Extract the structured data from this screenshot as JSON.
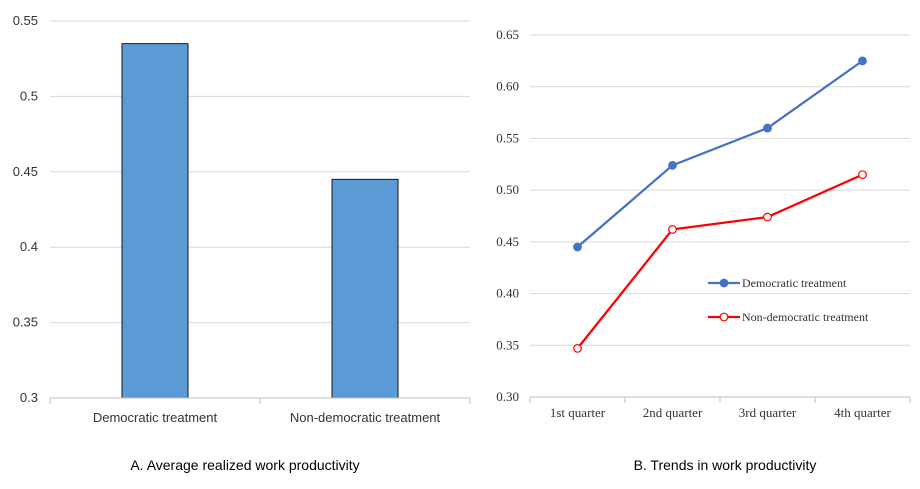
{
  "colors": {
    "bar_fill": "#5b9bd5",
    "bar_stroke": "#1a1a1a",
    "series_democratic": "#4472c4",
    "series_nondemocratic": "#ff0000"
  },
  "chart_data": [
    {
      "type": "bar",
      "caption": "A. Average realized work productivity",
      "categories": [
        "Democratic treatment",
        "Non-democratic treatment"
      ],
      "values": [
        0.535,
        0.445
      ],
      "ylim": [
        0.3,
        0.55
      ],
      "yticks": [
        "0.3",
        "0.35",
        "0.4",
        "0.45",
        "0.5",
        "0.55"
      ],
      "grid": true
    },
    {
      "type": "line",
      "caption": "B. Trends in work productivity",
      "categories": [
        "1st quarter",
        "2nd quarter",
        "3rd quarter",
        "4th quarter"
      ],
      "series": [
        {
          "name": "Democratic treatment",
          "values": [
            0.445,
            0.524,
            0.56,
            0.625
          ]
        },
        {
          "name": "Non-democratic treatment",
          "values": [
            0.347,
            0.462,
            0.474,
            0.515
          ]
        }
      ],
      "ylim": [
        0.3,
        0.65
      ],
      "yticks": [
        "0.30",
        "0.35",
        "0.40",
        "0.45",
        "0.50",
        "0.55",
        "0.60",
        "0.65"
      ],
      "grid": true,
      "legend": "right-middle"
    }
  ]
}
